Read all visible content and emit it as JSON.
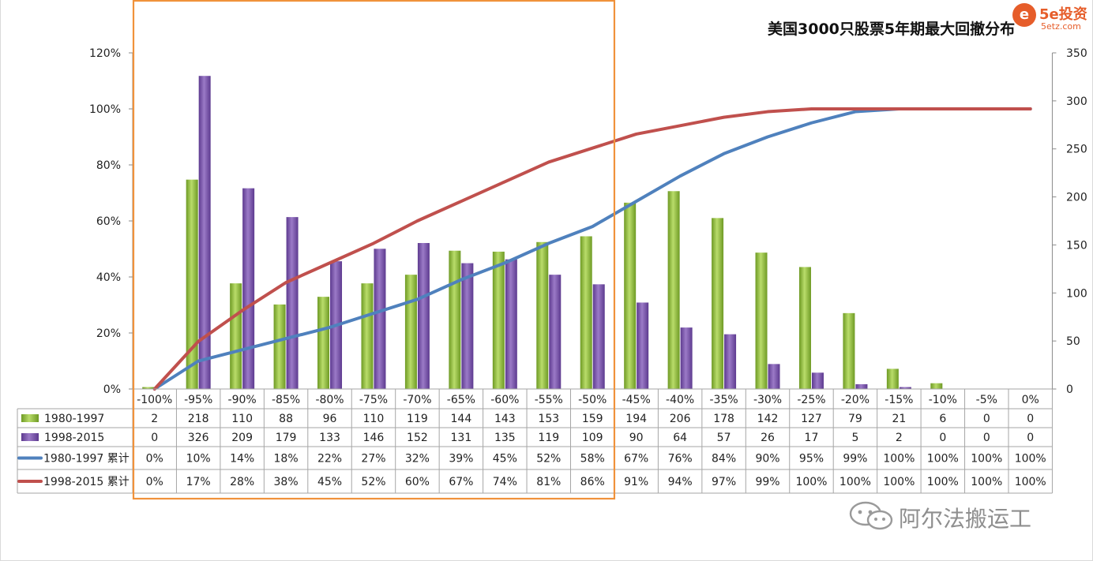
{
  "chart_data": {
    "type": "bar",
    "title": "美国3000只股票5年期最大回撤分布",
    "categories": [
      "-100%",
      "-95%",
      "-90%",
      "-85%",
      "-80%",
      "-75%",
      "-70%",
      "-65%",
      "-60%",
      "-55%",
      "-50%",
      "-45%",
      "-40%",
      "-35%",
      "-30%",
      "-25%",
      "-20%",
      "-15%",
      "-10%",
      "-5%",
      "0%"
    ],
    "bar_series": [
      {
        "name": "1980-1997",
        "values": [
          2,
          218,
          110,
          88,
          96,
          110,
          119,
          144,
          143,
          153,
          159,
          194,
          206,
          178,
          142,
          127,
          79,
          21,
          6,
          0,
          0
        ],
        "color": "#8dbb3a",
        "axis": "right"
      },
      {
        "name": "1998-2015",
        "values": [
          0,
          326,
          209,
          179,
          133,
          146,
          152,
          131,
          135,
          119,
          109,
          90,
          64,
          57,
          26,
          17,
          5,
          2,
          0,
          0,
          0
        ],
        "color": "#7b52ab",
        "axis": "right"
      }
    ],
    "line_series": [
      {
        "name": "1980-1997 累计",
        "values": [
          0,
          10,
          14,
          18,
          22,
          27,
          32,
          39,
          45,
          52,
          58,
          67,
          76,
          84,
          90,
          95,
          99,
          100,
          100,
          100,
          100
        ],
        "labels": [
          "0%",
          "10%",
          "14%",
          "18%",
          "22%",
          "27%",
          "32%",
          "39%",
          "45%",
          "52%",
          "58%",
          "67%",
          "76%",
          "84%",
          "90%",
          "95%",
          "99%",
          "100%",
          "100%",
          "100%",
          "100%"
        ],
        "color": "#4f81bd",
        "axis": "left"
      },
      {
        "name": "1998-2015 累计",
        "values": [
          0,
          17,
          28,
          38,
          45,
          52,
          60,
          67,
          74,
          81,
          86,
          91,
          94,
          97,
          99,
          100,
          100,
          100,
          100,
          100,
          100
        ],
        "labels": [
          "0%",
          "17%",
          "28%",
          "38%",
          "45%",
          "52%",
          "60%",
          "67%",
          "74%",
          "81%",
          "86%",
          "91%",
          "94%",
          "97%",
          "99%",
          "100%",
          "100%",
          "100%",
          "100%",
          "100%",
          "100%"
        ],
        "color": "#c0504d",
        "axis": "left"
      }
    ],
    "left_axis": {
      "min": 0,
      "max": 120,
      "step": 20,
      "tick_labels": [
        "0%",
        "20%",
        "40%",
        "60%",
        "80%",
        "100%",
        "120%"
      ]
    },
    "right_axis": {
      "min": 0,
      "max": 350,
      "step": 50,
      "tick_labels": [
        "0",
        "50",
        "100",
        "150",
        "200",
        "250",
        "300",
        "350"
      ]
    },
    "highlight": {
      "from": "-100%",
      "to": "-50%",
      "color": "#f0923b"
    },
    "data_table": true,
    "grid": false
  },
  "logo": {
    "glyph": "e",
    "brand": "5e投资",
    "url": "5etz.com"
  },
  "watermark": {
    "text": "阿尔法搬运工"
  }
}
